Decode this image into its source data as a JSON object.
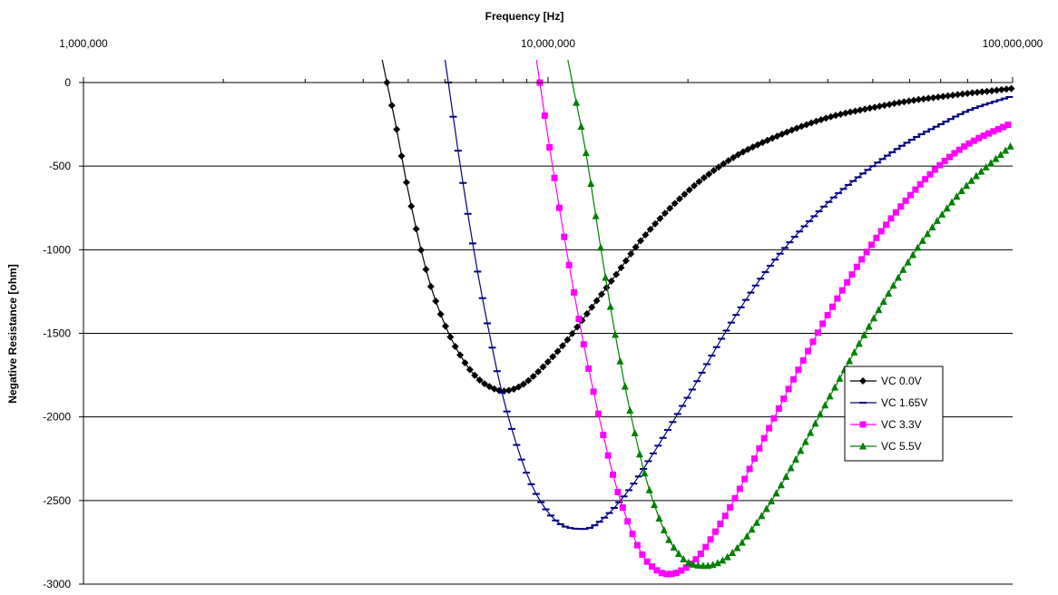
{
  "chart_data": {
    "type": "line",
    "xlabel": "Frequency [Hz]",
    "ylabel": "Negative Resistance [ohm]",
    "x_scale": "log",
    "xlim": [
      1000000,
      100000000
    ],
    "ylim": [
      -3000,
      0
    ],
    "x_tick_values": [
      1000000,
      10000000,
      100000000
    ],
    "x_tick_labels": [
      "1,000,000",
      "10,000,000",
      "100,000,000"
    ],
    "y_tick_values": [
      0,
      -500,
      -1000,
      -1500,
      -2000,
      -2500,
      -3000
    ],
    "y_tick_labels": [
      "0",
      "-500",
      "-1000",
      "-1500",
      "-2000",
      "-2500",
      "-3000"
    ],
    "grid": "horizontal",
    "legend_position": "right",
    "series": [
      {
        "name": "VC 0.0V",
        "color": "#000000",
        "marker": "diamond",
        "x": [
          4500000,
          4700000,
          5000000,
          5500000,
          6000000,
          6500000,
          7000000,
          7500000,
          8000000,
          8500000,
          9000000,
          10000000,
          11000000,
          12000000,
          14000000,
          16000000,
          20000000,
          25000000,
          30000000,
          40000000,
          50000000,
          60000000,
          70000000,
          80000000,
          90000000,
          100000000
        ],
        "y": [
          0,
          -250,
          -650,
          -1150,
          -1450,
          -1640,
          -1760,
          -1820,
          -1845,
          -1830,
          -1790,
          -1670,
          -1540,
          -1400,
          -1150,
          -930,
          -650,
          -450,
          -340,
          -210,
          -150,
          -110,
          -85,
          -65,
          -50,
          -35
        ]
      },
      {
        "name": "VC 1.65V",
        "color": "#000080",
        "marker": "dash",
        "x": [
          6100000,
          6500000,
          7000000,
          7500000,
          8000000,
          9000000,
          10000000,
          11000000,
          12000000,
          13000000,
          15000000,
          17000000,
          20000000,
          25000000,
          30000000,
          40000000,
          50000000,
          60000000,
          70000000,
          80000000,
          100000000
        ],
        "y": [
          0,
          -530,
          -1080,
          -1520,
          -1880,
          -2340,
          -2570,
          -2660,
          -2670,
          -2620,
          -2430,
          -2200,
          -1880,
          -1420,
          -1100,
          -720,
          -500,
          -350,
          -250,
          -170,
          -80
        ]
      },
      {
        "name": "VC 3.3V",
        "color": "#ff00ff",
        "marker": "square",
        "x": [
          9600000,
          10000000,
          11000000,
          12000000,
          13000000,
          14000000,
          15000000,
          16000000,
          17000000,
          18000000,
          19000000,
          21000000,
          23000000,
          25000000,
          30000000,
          35000000,
          40000000,
          50000000,
          60000000,
          70000000,
          80000000,
          100000000
        ],
        "y": [
          0,
          -330,
          -1030,
          -1600,
          -2050,
          -2410,
          -2660,
          -2830,
          -2910,
          -2940,
          -2930,
          -2840,
          -2680,
          -2510,
          -2060,
          -1690,
          -1390,
          -960,
          -680,
          -490,
          -370,
          -240
        ]
      },
      {
        "name": "VC 5.5V",
        "color": "#008000",
        "marker": "triangle",
        "x": [
          11500000,
          12000000,
          13000000,
          14000000,
          15000000,
          16000000,
          17000000,
          18000000,
          19000000,
          20000000,
          22000000,
          24000000,
          26000000,
          28000000,
          30000000,
          35000000,
          40000000,
          50000000,
          60000000,
          70000000,
          80000000,
          100000000
        ],
        "y": [
          -120,
          -380,
          -1000,
          -1530,
          -1960,
          -2300,
          -2540,
          -2710,
          -2810,
          -2870,
          -2890,
          -2850,
          -2760,
          -2640,
          -2520,
          -2200,
          -1900,
          -1420,
          -1060,
          -800,
          -610,
          -370
        ]
      }
    ]
  }
}
